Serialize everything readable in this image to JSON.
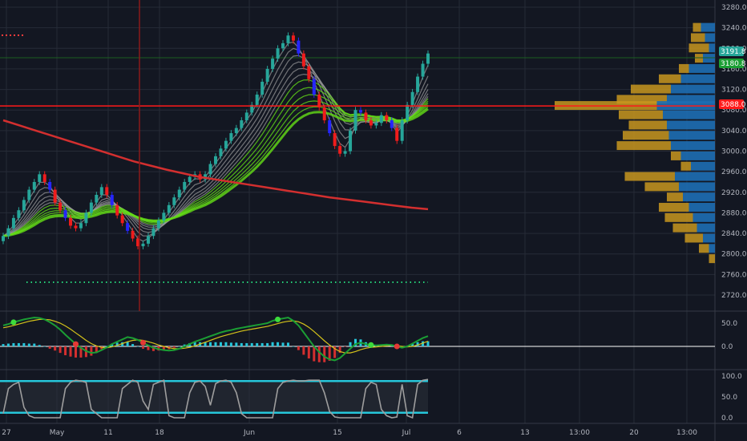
{
  "colors": {
    "background": "#131722",
    "grid": "#262b37",
    "candle_up": "#26a69a",
    "candle_down": "#ef1c1c",
    "candle_blue": "#2525ff",
    "ma200": "#d32f2f",
    "ribbon_fast": "#9e9e9e",
    "ribbon_slow": "#64dd17",
    "level_line": "#ff1a1a",
    "vp_up": "#1e6eb4",
    "vp_down": "#c8961e",
    "macd_line": "#1b9e34",
    "signal_line": "#d4c21a",
    "stoch_line": "#9e9e9e",
    "stoch_bound": "#26c6da"
  },
  "chart_data": [
    {
      "type": "candlestick",
      "name": "price",
      "x_labels": [
        "27",
        "May",
        "11",
        "18",
        "Jun",
        "15",
        "Jul",
        "6",
        "13",
        "13:00",
        "20",
        "13:00"
      ],
      "y_ticks": [
        "3280.0",
        "3240.0",
        "3200.0",
        "3160.0",
        "3120.0",
        "3080.0",
        "3040.0",
        "3000.0",
        "2960.0",
        "2920.0",
        "2880.0",
        "2840.0",
        "2800.0",
        "2760.0",
        "2720.0"
      ],
      "ylim": [
        2700,
        3290
      ],
      "close": [
        2835,
        2850,
        2870,
        2885,
        2905,
        2925,
        2940,
        2955,
        2940,
        2925,
        2900,
        2885,
        2870,
        2855,
        2850,
        2860,
        2880,
        2900,
        2915,
        2930,
        2915,
        2895,
        2875,
        2860,
        2845,
        2830,
        2815,
        2820,
        2835,
        2850,
        2865,
        2880,
        2895,
        2910,
        2925,
        2940,
        2950,
        2955,
        2945,
        2955,
        2975,
        2990,
        3005,
        3020,
        3035,
        3045,
        3060,
        3075,
        3090,
        3110,
        3135,
        3160,
        3180,
        3200,
        3210,
        3225,
        3215,
        3190,
        3165,
        3140,
        3110,
        3085,
        3060,
        3035,
        3010,
        2995,
        3000,
        3040,
        3080,
        3075,
        3060,
        3050,
        3055,
        3070,
        3060,
        3045,
        3020,
        3060,
        3090,
        3115,
        3145,
        3170,
        3190
      ],
      "last_price": "3191.8",
      "last_price_2": "3180.8",
      "level": "3088.0",
      "level_value": 3088,
      "volume_profile": [
        {
          "price": 3240,
          "up": 14,
          "down": 8
        },
        {
          "price": 3220,
          "up": 10,
          "down": 14
        },
        {
          "price": 3200,
          "up": 6,
          "down": 20
        },
        {
          "price": 3180,
          "up": 12,
          "down": 8
        },
        {
          "price": 3160,
          "up": 26,
          "down": 10
        },
        {
          "price": 3140,
          "up": 34,
          "down": 22
        },
        {
          "price": 3120,
          "up": 44,
          "down": 40
        },
        {
          "price": 3100,
          "up": 48,
          "down": 50
        },
        {
          "price": 3088,
          "up": 58,
          "down": 102
        },
        {
          "price": 3070,
          "up": 52,
          "down": 44
        },
        {
          "price": 3050,
          "up": 48,
          "down": 38
        },
        {
          "price": 3030,
          "up": 46,
          "down": 46
        },
        {
          "price": 3010,
          "up": 44,
          "down": 54
        },
        {
          "price": 2990,
          "up": 34,
          "down": 10
        },
        {
          "price": 2970,
          "up": 24,
          "down": 10
        },
        {
          "price": 2950,
          "up": 40,
          "down": 50
        },
        {
          "price": 2930,
          "up": 36,
          "down": 34
        },
        {
          "price": 2910,
          "up": 32,
          "down": 16
        },
        {
          "price": 2890,
          "up": 26,
          "down": 30
        },
        {
          "price": 2870,
          "up": 22,
          "down": 28
        },
        {
          "price": 2850,
          "up": 18,
          "down": 24
        },
        {
          "price": 2830,
          "up": 12,
          "down": 18
        },
        {
          "price": 2810,
          "up": 6,
          "down": 10
        },
        {
          "price": 2790,
          "up": 0,
          "down": 6
        }
      ]
    },
    {
      "type": "line",
      "name": "macd",
      "y_ticks": [
        "50.0",
        "0.0"
      ],
      "ylim": [
        -35,
        75
      ],
      "macd": [
        45,
        48,
        52,
        55,
        58,
        60,
        62,
        61,
        58,
        52,
        45,
        36,
        25,
        15,
        5,
        -3,
        -10,
        -14,
        -13,
        -8,
        -2,
        5,
        10,
        15,
        20,
        18,
        14,
        8,
        2,
        -3,
        -6,
        -8,
        -9,
        -8,
        -5,
        0,
        5,
        10,
        14,
        18,
        22,
        26,
        30,
        33,
        35,
        38,
        40,
        42,
        44,
        46,
        48,
        50,
        55,
        58,
        60,
        62,
        55,
        45,
        30,
        15,
        0,
        -12,
        -22,
        -28,
        -30,
        -25,
        -15,
        -5,
        5,
        8,
        5,
        3,
        2,
        3,
        4,
        3,
        0,
        -3,
        0,
        6,
        12,
        18,
        22
      ],
      "signal": [
        40,
        42,
        45,
        48,
        51,
        54,
        56,
        58,
        58,
        57,
        54,
        50,
        44,
        37,
        29,
        21,
        13,
        6,
        1,
        -2,
        -3,
        -1,
        2,
        6,
        10,
        13,
        14,
        13,
        10,
        7,
        3,
        0,
        -3,
        -5,
        -5,
        -4,
        -2,
        1,
        5,
        9,
        13,
        17,
        21,
        24,
        27,
        30,
        33,
        35,
        37,
        39,
        41,
        43,
        46,
        49,
        52,
        54,
        55,
        53,
        48,
        41,
        32,
        22,
        12,
        3,
        -5,
        -11,
        -14,
        -14,
        -11,
        -7,
        -4,
        -2,
        -1,
        0,
        1,
        2,
        1,
        0,
        -1,
        0,
        3,
        7,
        11
      ],
      "histogram": [
        5,
        6,
        7,
        7,
        7,
        6,
        6,
        3,
        0,
        -5,
        -9,
        -14,
        -19,
        -22,
        -24,
        -24,
        -23,
        -20,
        -14,
        -6,
        1,
        6,
        8,
        9,
        10,
        5,
        0,
        -5,
        -8,
        -10,
        -9,
        -8,
        -6,
        -3,
        0,
        4,
        7,
        9,
        9,
        9,
        9,
        9,
        9,
        9,
        8,
        8,
        7,
        7,
        7,
        7,
        7,
        7,
        9,
        9,
        8,
        8,
        0,
        -8,
        -18,
        -26,
        -32,
        -34,
        -34,
        -31,
        -25,
        -14,
        -1,
        9,
        16,
        15,
        9,
        5,
        3,
        3,
        3,
        1,
        -1,
        -3,
        1,
        6,
        9,
        11,
        11
      ]
    },
    {
      "type": "line",
      "name": "stochastic",
      "y_ticks": [
        "100.0",
        "50.0",
        "0.0"
      ],
      "ylim": [
        0,
        100
      ],
      "upper_band": 88,
      "lower_band": 12,
      "values": [
        10,
        70,
        80,
        85,
        25,
        5,
        0,
        0,
        0,
        0,
        0,
        0,
        70,
        85,
        90,
        88,
        85,
        20,
        10,
        0,
        0,
        0,
        0,
        70,
        80,
        90,
        85,
        40,
        20,
        80,
        85,
        90,
        5,
        0,
        0,
        0,
        60,
        85,
        88,
        75,
        30,
        82,
        88,
        90,
        85,
        60,
        10,
        0,
        0,
        0,
        0,
        0,
        0,
        70,
        85,
        88,
        90,
        88,
        88,
        90,
        90,
        90,
        60,
        15,
        2,
        0,
        0,
        0,
        0,
        0,
        70,
        85,
        80,
        20,
        5,
        0,
        2,
        80,
        5,
        0,
        80,
        90,
        92
      ]
    }
  ],
  "badges": {
    "last_price": "3191.8",
    "last_price_2": "3180.8",
    "level": "3088.0"
  }
}
